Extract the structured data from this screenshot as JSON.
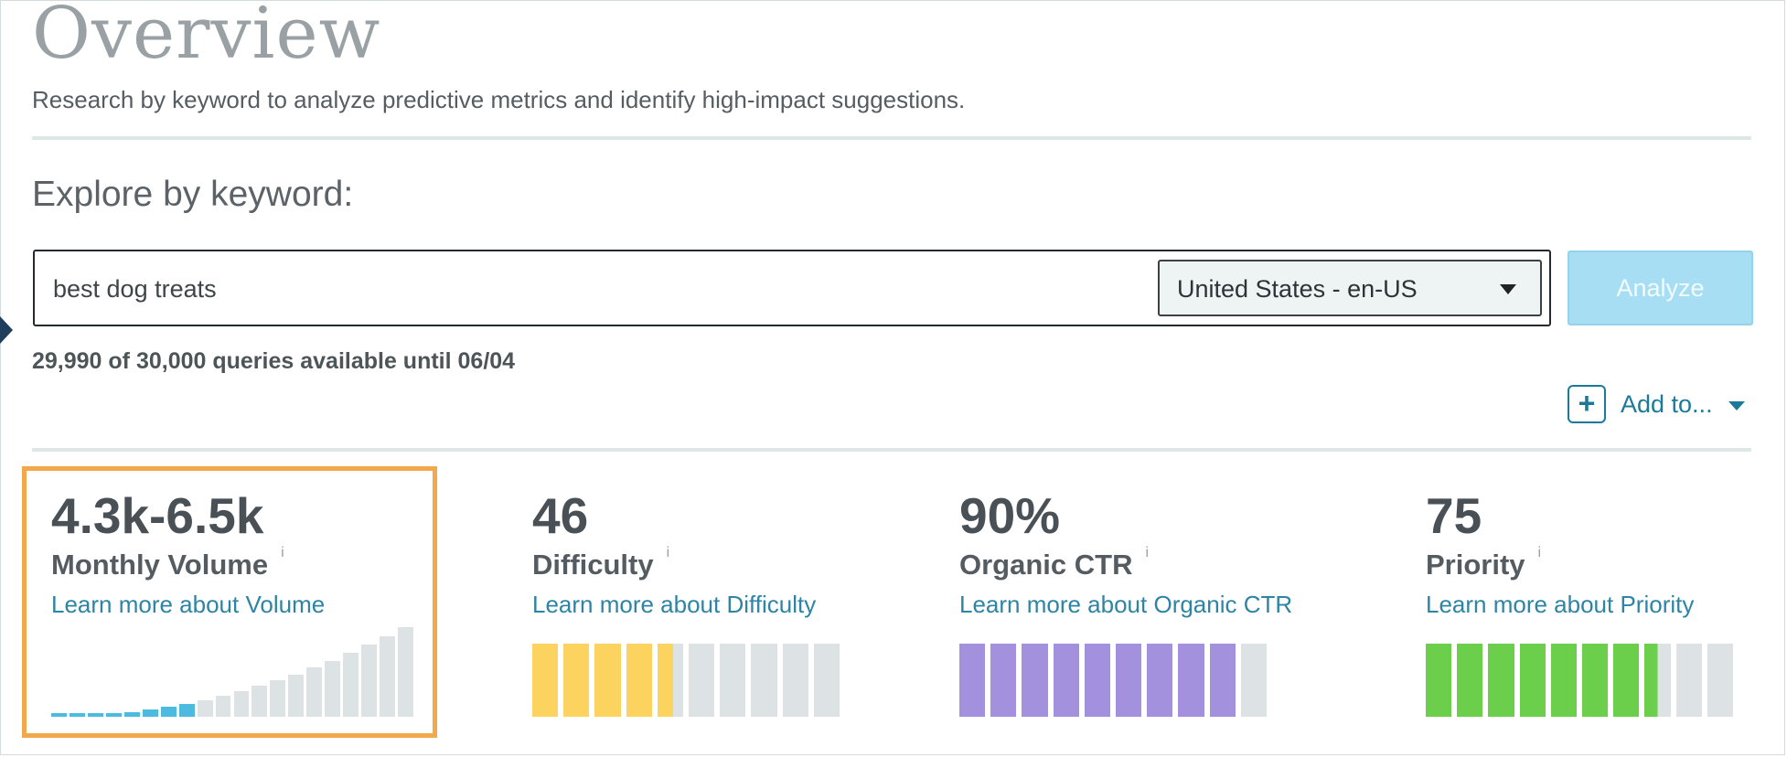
{
  "header": {
    "title": "Overview",
    "subtitle": "Research by keyword to analyze predictive metrics and identify high-impact suggestions."
  },
  "explore": {
    "heading": "Explore by keyword:",
    "keyword_value": "best dog treats",
    "locale": "United States - en-US",
    "analyze_label": "Analyze",
    "quota_text": "29,990 of 30,000 queries available until 06/04",
    "add_to_label": "Add to...",
    "add_icon": "+"
  },
  "metrics": [
    {
      "value": "4.3k-6.5k",
      "label": "Monthly Volume",
      "info": "i",
      "link": "Learn more about Volume",
      "graph": "volume",
      "filled_segments": 8,
      "total_segments": 20,
      "fill_color": "#4dbadf",
      "empty_color": "#dde3e4"
    },
    {
      "value": "46",
      "label": "Difficulty",
      "info": "i",
      "link": "Learn more about Difficulty",
      "graph": "segments",
      "score": 46,
      "filled_segments": 4.6,
      "total_segments": 10,
      "fill_color": "#fdd35f",
      "empty_color": "#dde3e4"
    },
    {
      "value": "90%",
      "label": "Organic CTR",
      "info": "i",
      "link": "Learn more about Organic CTR",
      "graph": "segments",
      "score": 90,
      "filled_segments": 9,
      "total_segments": 10,
      "fill_color": "#a491de",
      "empty_color": "#dde3e4"
    },
    {
      "value": "75",
      "label": "Priority",
      "info": "i",
      "link": "Learn more about Priority",
      "graph": "segments",
      "score": 75,
      "filled_segments": 7.5,
      "total_segments": 10,
      "fill_color": "#6ccf4b",
      "empty_color": "#dde3e4"
    }
  ]
}
